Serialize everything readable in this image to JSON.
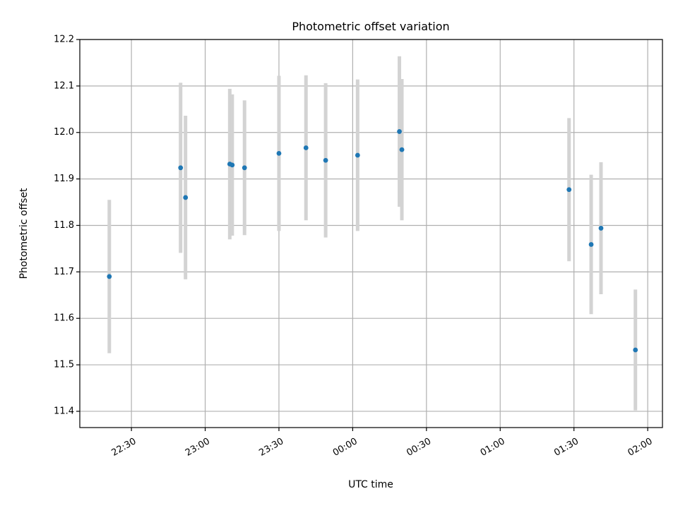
{
  "chart_data": {
    "type": "scatter",
    "title": "Photometric offset variation",
    "xlabel": "UTC time",
    "ylabel": "Photometric offset",
    "x_axis": "time",
    "xlim": [
      "22:09",
      "02:06"
    ],
    "ylim": [
      11.365,
      12.2
    ],
    "x_ticks": [
      "22:30",
      "23:00",
      "23:30",
      "00:00",
      "00:30",
      "01:00",
      "01:30",
      "02:00"
    ],
    "y_ticks": [
      11.4,
      11.5,
      11.6,
      11.7,
      11.8,
      11.9,
      12.0,
      12.1,
      12.2
    ],
    "grid": true,
    "point_color": "#1f77b4",
    "errorbar_color": "#d3d3d3",
    "points": [
      {
        "time": "22:21",
        "y": 11.69,
        "yerr": 0.165
      },
      {
        "time": "22:50",
        "y": 11.924,
        "yerr": 0.183
      },
      {
        "time": "22:52",
        "y": 11.86,
        "yerr": 0.176
      },
      {
        "time": "23:10",
        "y": 11.932,
        "yerr": 0.162
      },
      {
        "time": "23:11",
        "y": 11.93,
        "yerr": 0.152
      },
      {
        "time": "23:16",
        "y": 11.924,
        "yerr": 0.145
      },
      {
        "time": "23:30",
        "y": 11.955,
        "yerr": 0.167
      },
      {
        "time": "23:41",
        "y": 11.967,
        "yerr": 0.156
      },
      {
        "time": "23:49",
        "y": 11.94,
        "yerr": 0.166
      },
      {
        "time": "00:02",
        "y": 11.951,
        "yerr": 0.163
      },
      {
        "time": "00:19",
        "y": 12.002,
        "yerr": 0.162
      },
      {
        "time": "00:20",
        "y": 11.963,
        "yerr": 0.152
      },
      {
        "time": "01:28",
        "y": 11.877,
        "yerr": 0.154
      },
      {
        "time": "01:37",
        "y": 11.759,
        "yerr": 0.15
      },
      {
        "time": "01:41",
        "y": 11.794,
        "yerr": 0.142
      },
      {
        "time": "01:55",
        "y": 11.532,
        "yerr": 0.13
      }
    ]
  }
}
